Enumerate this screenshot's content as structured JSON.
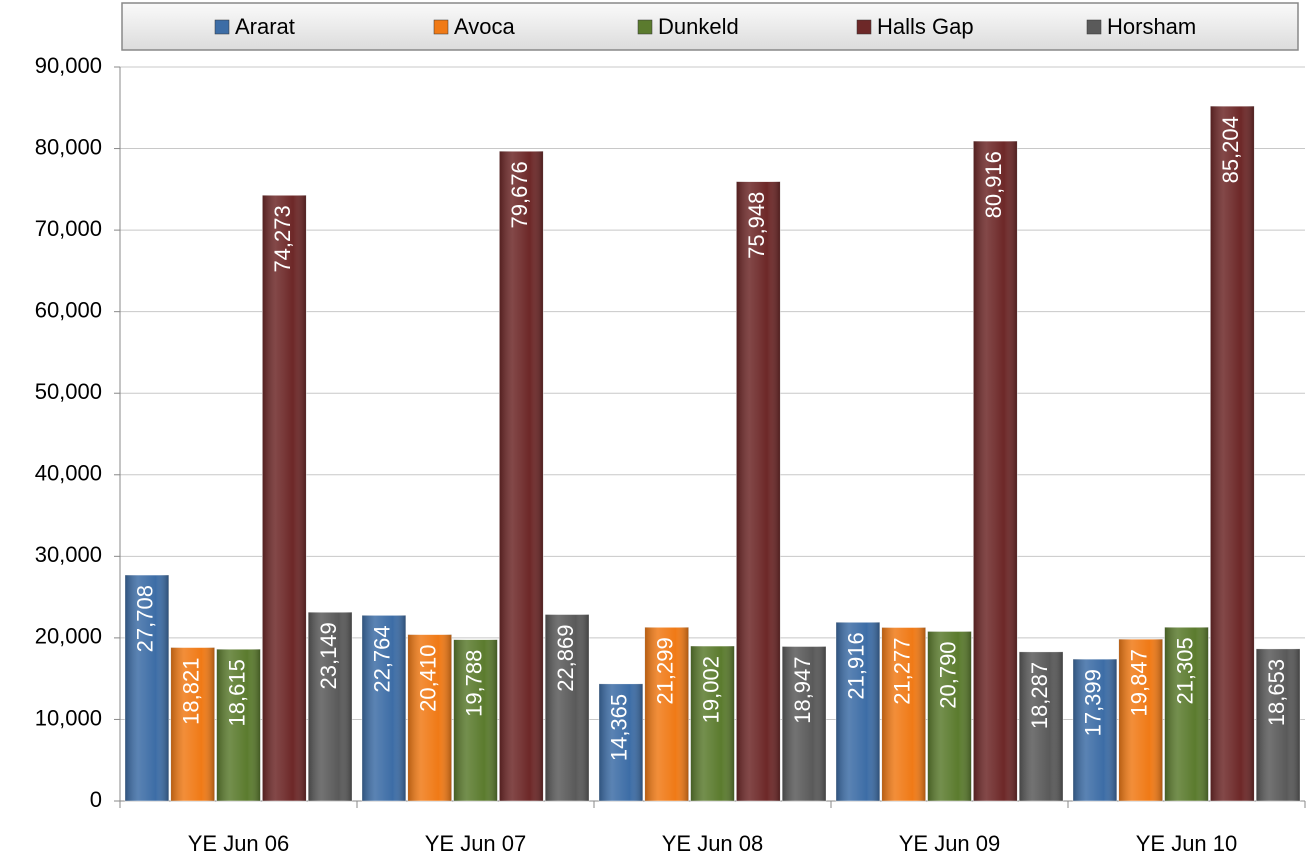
{
  "chart_data": {
    "type": "bar",
    "categories": [
      "YE Jun 06",
      "YE Jun 07",
      "YE Jun 08",
      "YE Jun 09",
      "YE Jun 10"
    ],
    "series": [
      {
        "name": "Ararat",
        "color": "#3d6da6",
        "values": [
          27708,
          22764,
          14365,
          21916,
          17399
        ],
        "value_labels": [
          "27,708",
          "22,764",
          "14,365",
          "21,916",
          "17,399"
        ]
      },
      {
        "name": "Avoca",
        "color": "#f07a16",
        "values": [
          18821,
          20410,
          21299,
          21277,
          19847
        ],
        "value_labels": [
          "18,821",
          "20,410",
          "21,299",
          "21,277",
          "19,847"
        ]
      },
      {
        "name": "Dunkeld",
        "color": "#5b7b2e",
        "values": [
          18615,
          19788,
          19002,
          20790,
          21305
        ],
        "value_labels": [
          "18,615",
          "19,788",
          "19,002",
          "20,790",
          "21,305"
        ]
      },
      {
        "name": "Halls Gap",
        "color": "#6d2828",
        "values": [
          74273,
          79676,
          75948,
          80916,
          85204
        ],
        "value_labels": [
          "74,273",
          "79,676",
          "75,948",
          "80,916",
          "85,204"
        ]
      },
      {
        "name": "Horsham",
        "color": "#5a5a5a",
        "values": [
          23149,
          22869,
          18947,
          18287,
          18653
        ],
        "value_labels": [
          "23,149",
          "22,869",
          "18,947",
          "18,287",
          "18,653"
        ]
      }
    ],
    "ylim": [
      0,
      90000
    ],
    "yticks": [
      0,
      {
        "value": 10000,
        "label": "10,000"
      },
      {
        "value": 20000,
        "label": "20,000"
      },
      {
        "value": 30000,
        "label": "30,000"
      },
      {
        "value": 40000,
        "label": "40,000"
      },
      {
        "value": 50000,
        "label": "50,000"
      },
      {
        "value": 60000,
        "label": "60,000"
      },
      {
        "value": 70000,
        "label": "70,000"
      },
      {
        "value": 80000,
        "label": "80,000"
      },
      {
        "value": 90000,
        "label": "90,000"
      }
    ],
    "grid": true,
    "legend": "top"
  }
}
